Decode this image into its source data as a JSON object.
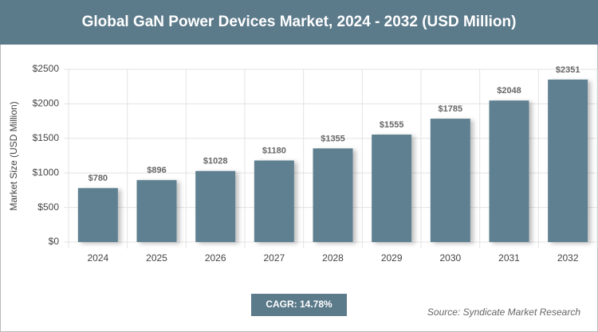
{
  "chart_data": {
    "type": "bar",
    "title": "Global GaN Power Devices Market, 2024 - 2032 (USD Million)",
    "y_label": "Market Size (USD Million)",
    "categories": [
      "2024",
      "2025",
      "2026",
      "2027",
      "2028",
      "2029",
      "2030",
      "2031",
      "2032"
    ],
    "values": [
      780,
      896,
      1028,
      1180,
      1355,
      1555,
      1785,
      2048,
      2351
    ],
    "value_labels": [
      "$780",
      "$896",
      "$1028",
      "$1180",
      "$1355",
      "$1555",
      "$1785",
      "$2048",
      "$2351"
    ],
    "color": "#5f8090",
    "ylim": [
      0,
      2500
    ],
    "yticks": [
      {
        "value": 0,
        "label": "$0"
      },
      {
        "value": 500,
        "label": "$500"
      },
      {
        "value": 1000,
        "label": "$1000"
      },
      {
        "value": 1500,
        "label": "$1500"
      },
      {
        "value": 2000,
        "label": "$2000"
      },
      {
        "value": 2500,
        "label": "$2500"
      }
    ],
    "grid": true,
    "annotation": "CAGR: 14.78%",
    "source": "Source: Syndicate Market Research"
  }
}
